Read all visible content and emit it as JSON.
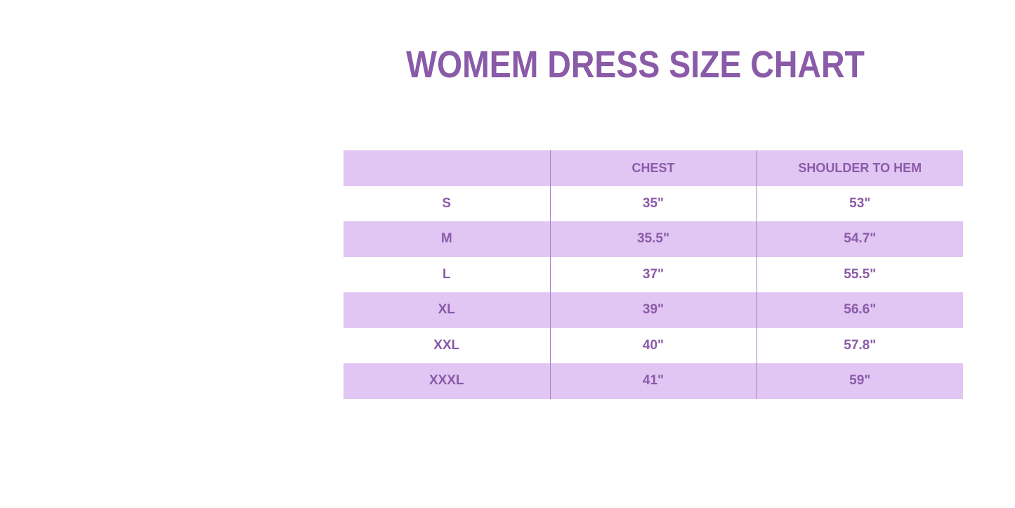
{
  "title": "WOMEM DRESS SIZE CHART",
  "colors": {
    "text": "#8a5ba8",
    "row_fill": "#e1c6f3"
  },
  "table": {
    "headers": [
      "",
      "CHEST",
      "SHOULDER TO HEM"
    ],
    "rows": [
      [
        "S",
        "35\"",
        "53\""
      ],
      [
        "M",
        "35.5\"",
        "54.7\""
      ],
      [
        "L",
        "37\"",
        "55.5\""
      ],
      [
        "XL",
        "39\"",
        "56.6\""
      ],
      [
        "XXL",
        "40\"",
        "57.8\""
      ],
      [
        "XXXL",
        "41\"",
        "59\""
      ]
    ]
  }
}
